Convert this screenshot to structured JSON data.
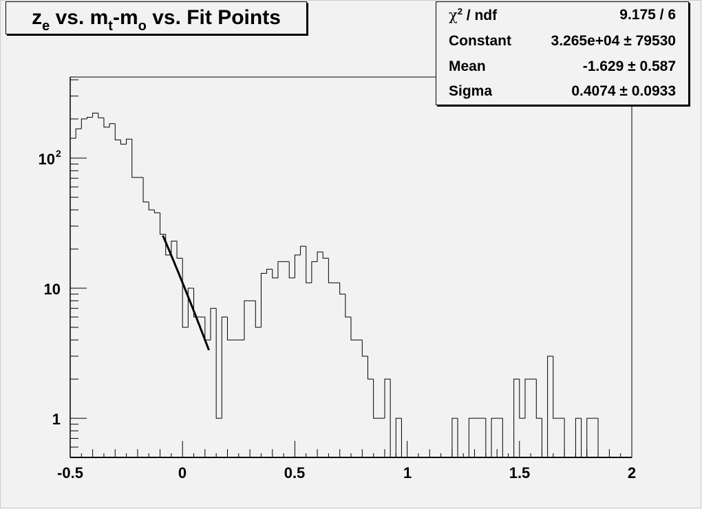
{
  "title": {
    "parts": [
      "z",
      "e",
      " vs. m",
      "t",
      "-m",
      "o",
      " vs. Fit Points"
    ]
  },
  "stats": {
    "rows": [
      {
        "label": "χ",
        "label_sup": "2",
        "label_rest": " / ndf",
        "value": "9.175 / 6"
      },
      {
        "label": "Constant",
        "value": "3.265e+04 ± 79530"
      },
      {
        "label": "Mean",
        "value": "-1.629 ± 0.587"
      },
      {
        "label": "Sigma",
        "value": "0.4074 ± 0.0933"
      }
    ]
  },
  "colors": {
    "background": "#f2f2f2",
    "line": "#000000"
  },
  "chart_data": {
    "type": "histogram",
    "title": "z_e vs. m_t-m_o vs. Fit Points",
    "xlabel": "",
    "ylabel": "",
    "xlim": [
      -0.5,
      2.0
    ],
    "ylim": [
      0.5,
      420
    ],
    "ylog": true,
    "grid": false,
    "bin_width": 0.025,
    "x_tick_labels": [
      "-0.5",
      "0",
      "0.5",
      "1",
      "1.5",
      "2"
    ],
    "x_ticks": [
      -0.5,
      0,
      0.5,
      1,
      1.5,
      2
    ],
    "y_tick_labels": [
      "1",
      "10",
      "10",
      "2"
    ],
    "y_ticks": [
      1,
      10,
      100
    ],
    "counts": [
      142,
      168,
      200,
      206,
      222,
      204,
      173,
      184,
      138,
      128,
      140,
      71,
      71,
      46,
      40,
      38,
      26,
      18,
      23,
      17,
      5,
      10,
      6,
      6,
      4,
      7,
      1,
      6,
      4,
      4,
      4,
      8,
      8,
      5,
      13,
      14,
      12,
      16,
      16,
      12,
      18,
      21,
      11,
      16,
      19,
      17,
      11,
      11,
      9,
      6,
      4,
      4,
      3,
      2,
      1,
      1,
      2,
      0,
      1,
      0,
      0,
      0,
      0,
      0,
      0,
      0,
      0,
      0,
      1,
      0,
      0,
      1,
      1,
      1,
      0,
      1,
      1,
      0,
      0,
      2,
      1,
      2,
      2,
      1,
      0,
      3,
      1,
      1,
      0,
      0,
      1,
      0,
      1,
      1,
      0,
      0,
      0,
      0,
      0,
      0
    ],
    "fit": {
      "function": "gaus",
      "constant": 32650,
      "mean": -1.629,
      "sigma": 0.4074,
      "range": [
        -0.0875,
        0.1175
      ]
    }
  }
}
